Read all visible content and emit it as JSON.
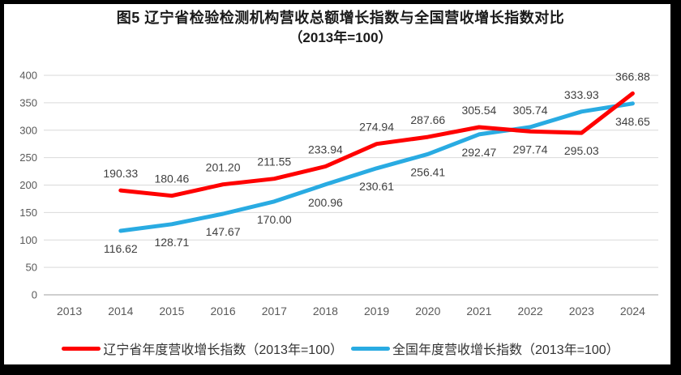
{
  "window": {
    "background_color": "#FFFFFF",
    "frame_color": "#000000"
  },
  "title": {
    "line1": "图5  辽宁省检验检测机构营收总额增长指数与全国营收增长指数对比",
    "line2": "（2013年=100）"
  },
  "chart_data": {
    "type": "line",
    "categories": [
      "2013",
      "2014",
      "2015",
      "2016",
      "2017",
      "2018",
      "2019",
      "2020",
      "2021",
      "2022",
      "2023",
      "2024"
    ],
    "series": [
      {
        "name": "辽宁省年度营收增长指数（2013年=100）",
        "color": "#FF0000",
        "values": [
          null,
          190.33,
          180.46,
          201.2,
          211.55,
          233.94,
          274.94,
          287.66,
          305.54,
          297.74,
          295.03,
          366.88
        ]
      },
      {
        "name": "全国年度营收增长指数（2013年=100）",
        "color": "#29ABE2",
        "values": [
          null,
          116.62,
          128.71,
          147.67,
          170.0,
          200.96,
          230.61,
          256.41,
          292.47,
          305.74,
          333.93,
          348.65
        ]
      }
    ],
    "ylim": [
      0,
      400
    ],
    "y_ticks": [
      0,
      50,
      100,
      150,
      200,
      250,
      300,
      350,
      400
    ],
    "grid": true,
    "data_labels": true,
    "legend_position": "bottom",
    "grid_color": "#D9D9D9",
    "axis_color": "#BFBFBF",
    "tick_color": "#595959",
    "label_color": "#3F3F3F"
  }
}
